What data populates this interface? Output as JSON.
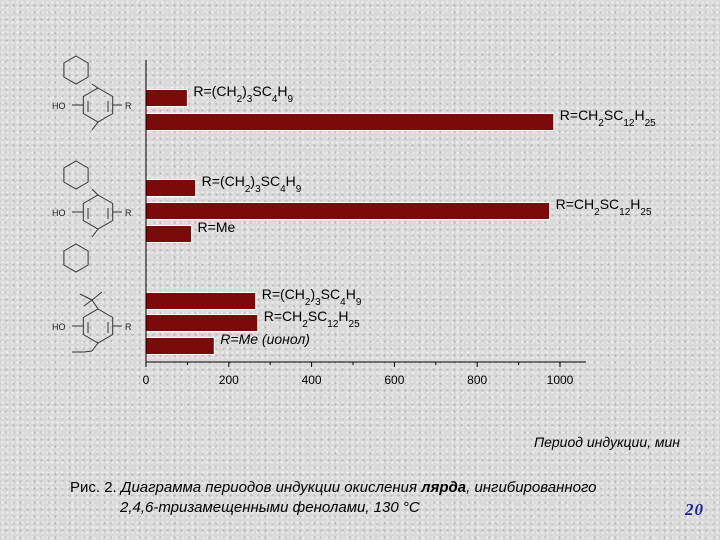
{
  "chart_data": {
    "type": "bar",
    "orientation": "horizontal",
    "xlabel": "Период индукции, мин",
    "xlim": [
      0,
      1000
    ],
    "xticks": [
      0,
      200,
      400,
      600,
      800,
      1000
    ],
    "grid": false,
    "groups": [
      {
        "molecule_labels": [
          "HO",
          "R"
        ],
        "bars": [
          {
            "label": "R=(CH2)3SC4H9",
            "value": 100
          },
          {
            "label": "R=CH2SC12H25",
            "value": 985
          }
        ]
      },
      {
        "molecule_labels": [
          "HO",
          "R"
        ],
        "bars": [
          {
            "label": "R=(CH2)3SC4H9",
            "value": 120
          },
          {
            "label": "R=CH2SC12H25",
            "value": 975
          },
          {
            "label": "R=Me",
            "value": 110
          }
        ]
      },
      {
        "molecule_labels": [
          "HO",
          "R"
        ],
        "bars": [
          {
            "label": "R=(CH2)3SC4H9",
            "value": 265
          },
          {
            "label": "R=CH2SC12H25",
            "value": 270
          },
          {
            "label": "R=Me (ионол)",
            "value": 165
          }
        ]
      }
    ],
    "bar_color": "#7d0a0a"
  },
  "caption": {
    "prefix": "Рис. 2.",
    "text_before": "Диаграмма периодов индукции окисления",
    "bold_word": "лярда",
    "text_after": ", ингибированного",
    "line2": "2,4,6-тризамещенными фенолами, 130 °С"
  },
  "page_number": "20"
}
